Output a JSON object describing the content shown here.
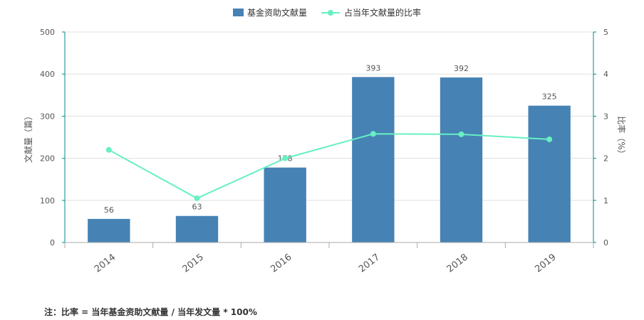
{
  "chart_data": {
    "type": "bar",
    "categories": [
      "2014",
      "2015",
      "2016",
      "2017",
      "2018",
      "2019"
    ],
    "series": [
      {
        "name": "基金资助文献量",
        "type": "bar",
        "axis": "left",
        "values": [
          56,
          63,
          178,
          393,
          392,
          325
        ],
        "color": "#4682b4"
      },
      {
        "name": "占当年文献量的比率",
        "type": "line",
        "axis": "right",
        "values": [
          2.2,
          1.05,
          2.0,
          2.58,
          2.57,
          2.45
        ],
        "color": "#66f0c3"
      }
    ],
    "y_left": {
      "label": "文献量（篇）",
      "ylim": [
        0,
        500
      ],
      "ticks": [
        0,
        100,
        200,
        300,
        400,
        500
      ]
    },
    "y_right": {
      "label": "比率（%）",
      "ylim": [
        0,
        5
      ],
      "ticks": [
        0,
        1,
        2,
        3,
        4,
        5
      ]
    },
    "legend_position": "top-center",
    "grid": true
  },
  "note": "注：比率 = 当年基金资助文献量 / 当年发文量 * 100%",
  "colors": {
    "bar": "#4682b4",
    "line": "#66f0c3",
    "axis": "#008b8b",
    "grid": "#e0e0e0"
  }
}
